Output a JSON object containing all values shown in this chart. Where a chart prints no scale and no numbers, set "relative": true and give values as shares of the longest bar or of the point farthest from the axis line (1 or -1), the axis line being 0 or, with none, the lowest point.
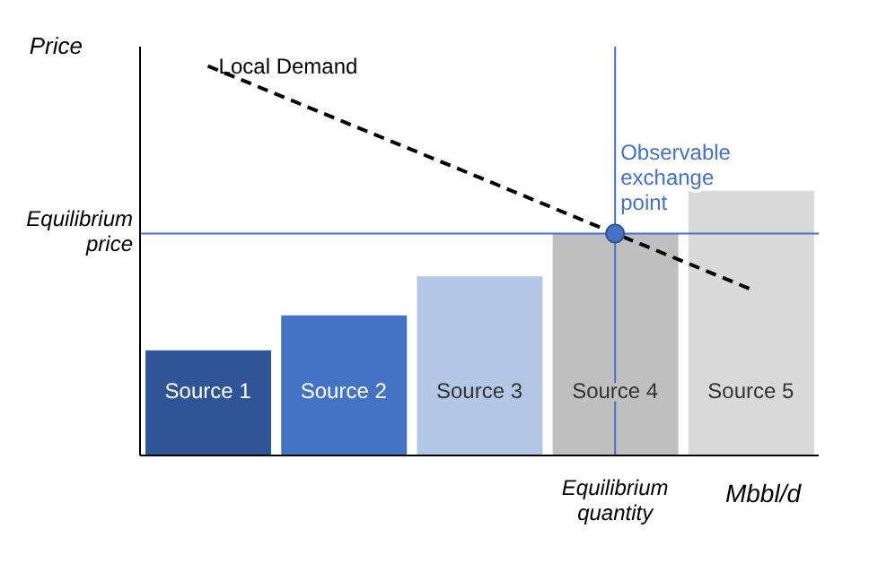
{
  "chart_data": {
    "type": "bar",
    "relative": true,
    "ylabel": "Price",
    "xlabel": "Mbbl/d",
    "categories": [
      "Source 1",
      "Source 2",
      "Source 3",
      "Source 4",
      "Source 5"
    ],
    "series": [
      {
        "values": [
          0.27,
          0.36,
          0.46,
          0.57,
          0.68
        ],
        "colors": [
          "#2f5597",
          "#4472c4",
          "#b4c7e7",
          "#bfbfbf",
          "#d9d9d9"
        ]
      },
      {
        "type": "line",
        "name": "Local Demand",
        "color": "#000000",
        "line_style": "dashed",
        "marker": "none",
        "values": [
          1.0,
          0.857,
          0.714,
          0.57,
          0.427
        ]
      }
    ],
    "ref_lines": [
      {
        "axis": "y",
        "value": 0.57,
        "label": "Equilibrium price",
        "color": "#4472c4"
      },
      {
        "axis": "x",
        "value": "Source 4",
        "label": "Equilibrium quantity",
        "color": "#4472c4"
      }
    ],
    "annotations": [
      {
        "text": "Observable exchange point",
        "x": "Source 4",
        "y": 0.57
      }
    ],
    "legend": false,
    "grid": false
  }
}
